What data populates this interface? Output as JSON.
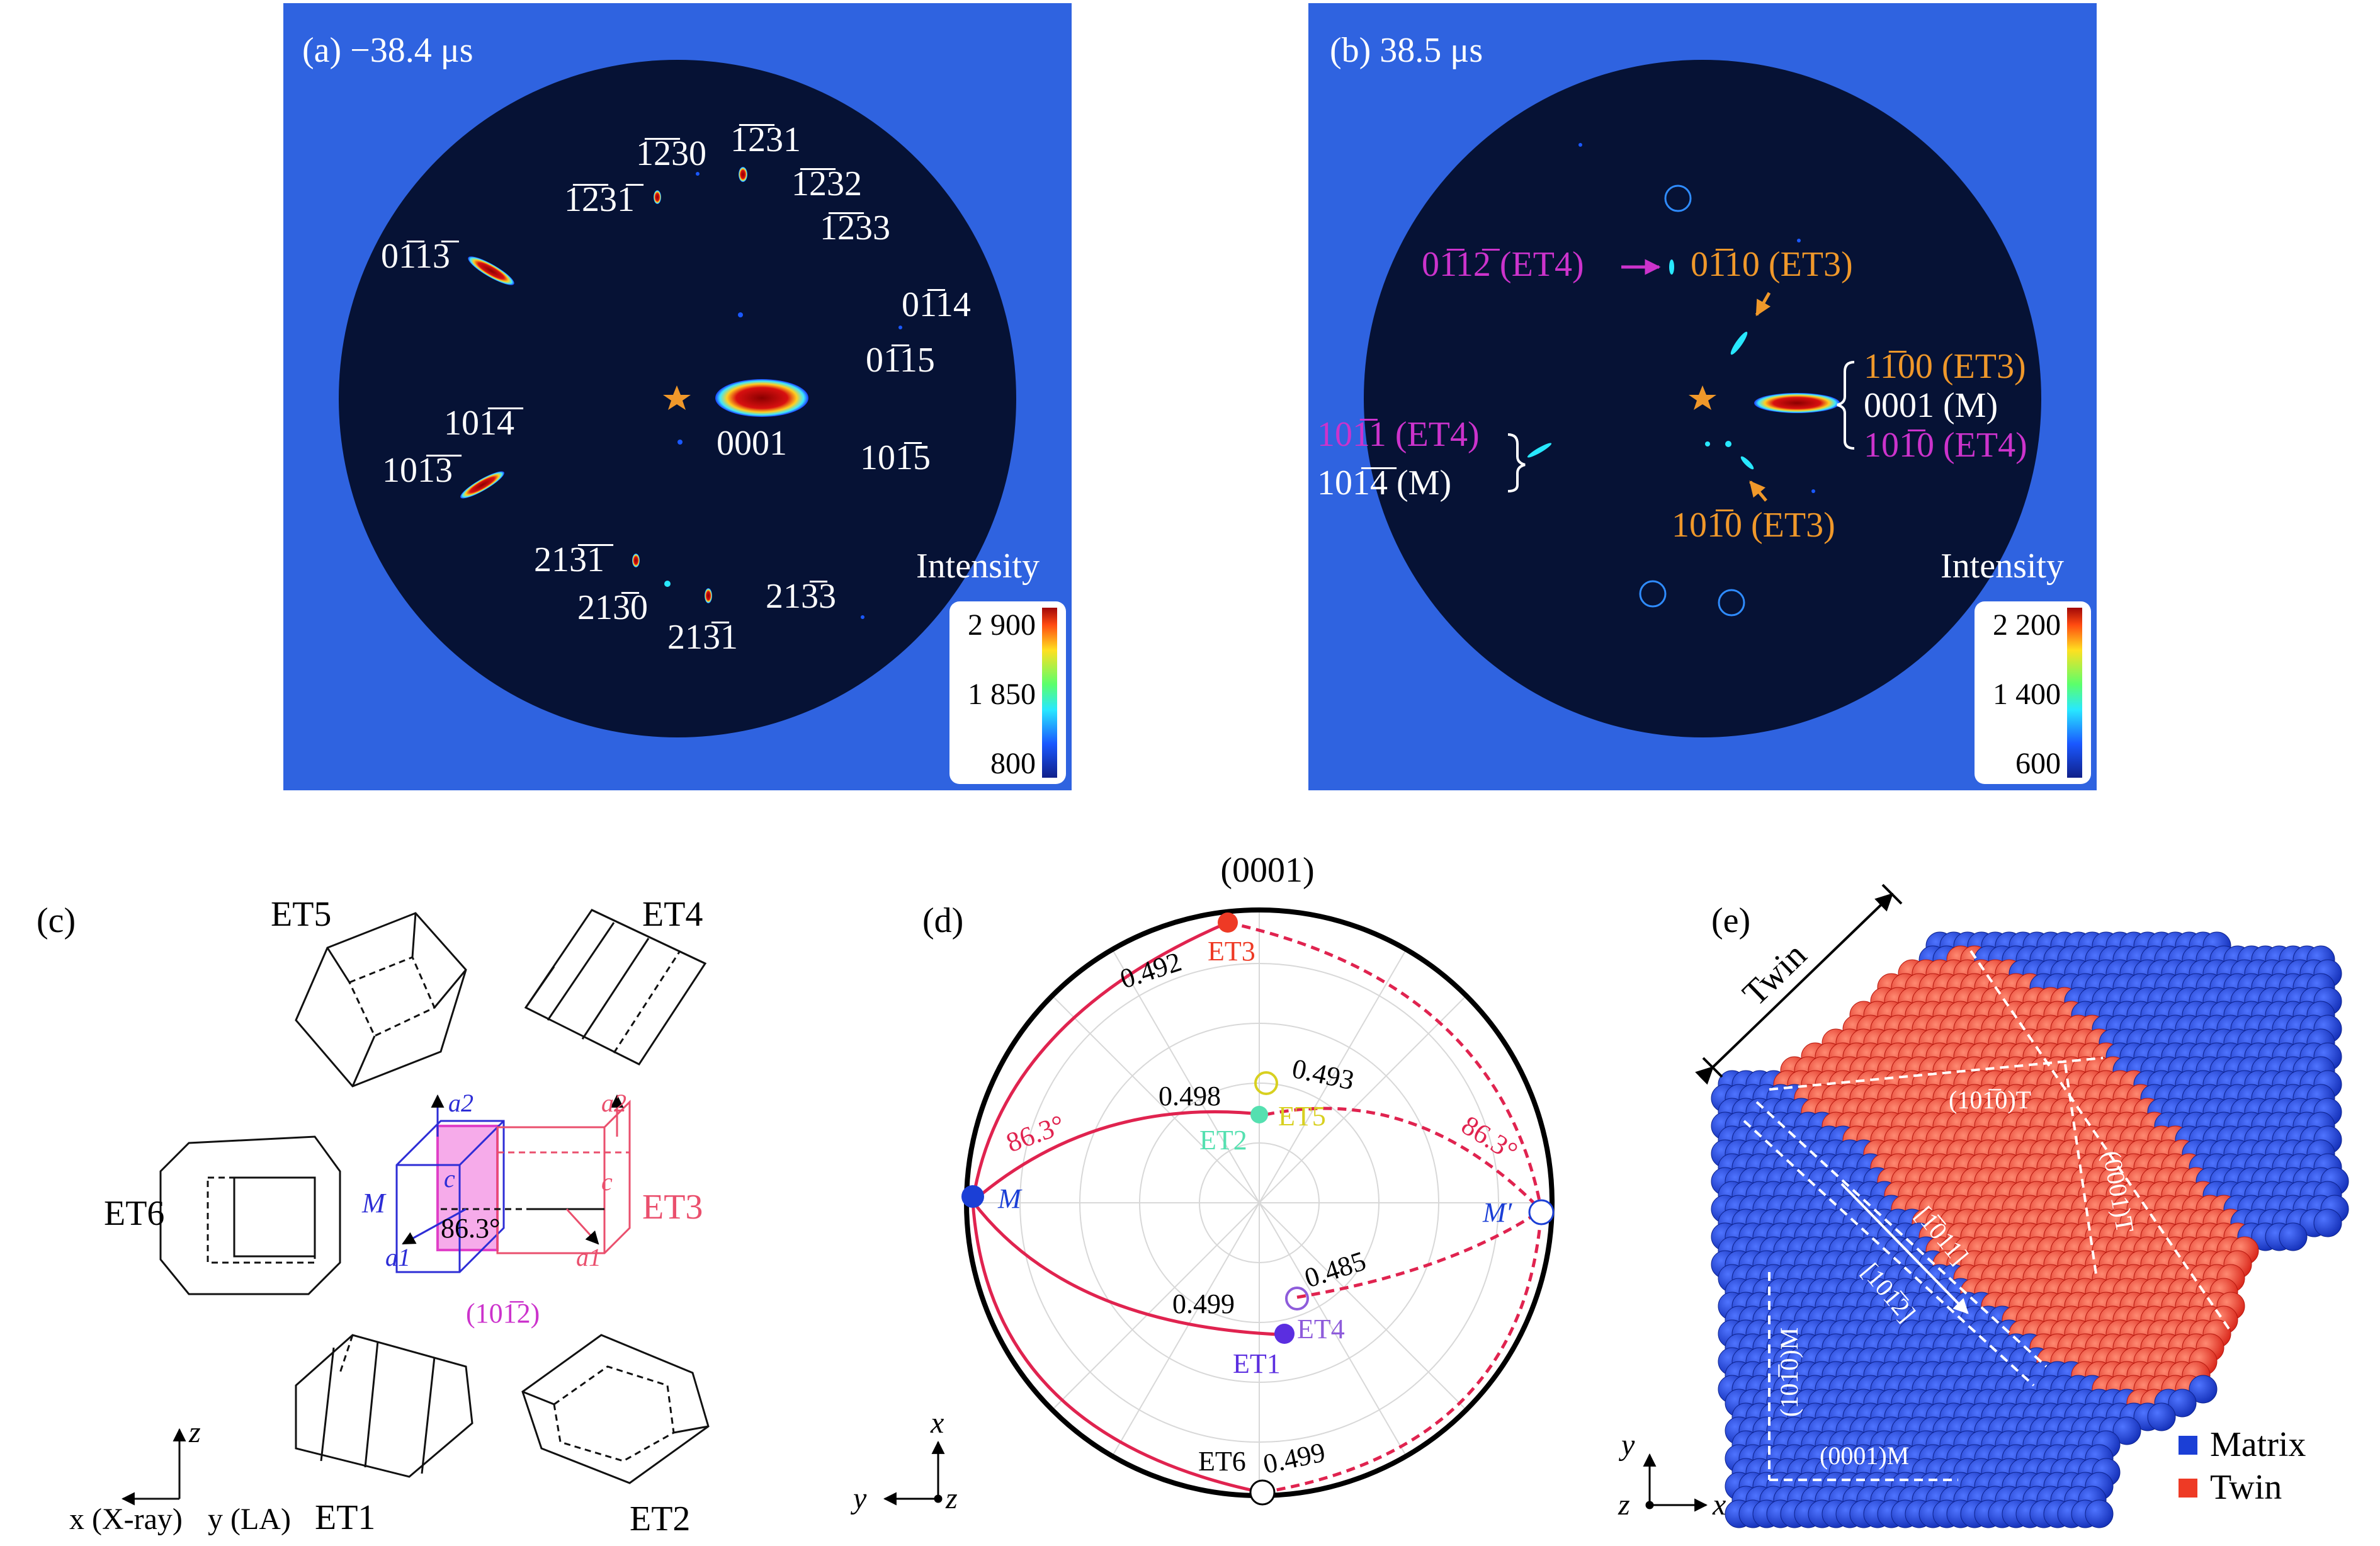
{
  "panel_a": {
    "title": "(a) −38.4 μs",
    "spots": {
      "s1": "1̅2̅30",
      "s2": "1̅2̅31",
      "s3": "1̅2̅32",
      "s4": "1̅2̅33",
      "s5": "1̅2̅31̅",
      "s6": "01̅13̅",
      "s7": "01̅14",
      "s8": "01̅15",
      "s9": "101̅4̅",
      "s10": "101̅3̅",
      "s11": "0001",
      "s12": "101̅5",
      "s13": "213̅1̅",
      "s14": "213̅0",
      "s15": "213̅1",
      "s16": "213̅3"
    },
    "colorbar": {
      "title": "Intensity",
      "max": "2 900",
      "mid": "1 850",
      "min": "800"
    }
  },
  "panel_b": {
    "title": "(b) 38.5 μs",
    "labels": {
      "l1": "01̅12̅ (ET4)",
      "l2": "01̅10 (ET3)",
      "l3": "11̅00 (ET3)",
      "l4": "0001 (M)",
      "l5": "101̅0 (ET4)",
      "l6": "101̅1 (ET4)",
      "l7": "101̅4̅ (M)",
      "l8": "101̅0 (ET3)"
    },
    "colorbar": {
      "title": "Intensity",
      "max": "2 200",
      "mid": "1 400",
      "min": "600"
    }
  },
  "panel_c": {
    "title": "(c)",
    "variants": {
      "et1": "ET1",
      "et2": "ET2",
      "et3": "ET3",
      "et4": "ET4",
      "et5": "ET5",
      "et6": "ET6"
    },
    "angle": "86.3°",
    "plane": "(101̅2)",
    "m": "M",
    "a1": "a1",
    "a2": "a2",
    "c": "c",
    "axes": {
      "z": "z",
      "x": "x (X-ray)",
      "y": "y (LA)"
    }
  },
  "panel_d": {
    "title": "(d)",
    "pole": "(0001)",
    "points": {
      "et3": "ET3",
      "et5": "ET5",
      "et2": "ET2",
      "et1": "ET1",
      "et4": "ET4",
      "et6": "ET6",
      "m": "M",
      "mp": "M′"
    },
    "values": {
      "v1": "0.492",
      "v2": "0.493",
      "v3": "0.498",
      "v4": "0.499",
      "v5": "0.485",
      "v6": "0.499"
    },
    "angles": {
      "left": "86.3°",
      "right": "86.3°"
    },
    "axes": {
      "x": "x",
      "y": "y",
      "z": "z"
    }
  },
  "panel_e": {
    "title": "(e)",
    "twin_label": "Twin",
    "planes": {
      "p1": "(101̅0)T",
      "p2": "(0001)T",
      "p3": "[1̅011]",
      "p4": "[101̅2]",
      "p5": "(101̅0)M",
      "p6": "(0001)M"
    },
    "legend": {
      "matrix": "Matrix",
      "twin": "Twin"
    },
    "axes": {
      "x": "x",
      "y": "y",
      "z": "z"
    }
  },
  "colors": {
    "frame_blue": "#2f63e0",
    "disk": "#061235",
    "twin_red": "#ee3a25",
    "matrix_blue": "#1b3fd6",
    "trace_red": "#e0234f",
    "magenta": "#cc33cc",
    "orange": "#f0982a"
  }
}
